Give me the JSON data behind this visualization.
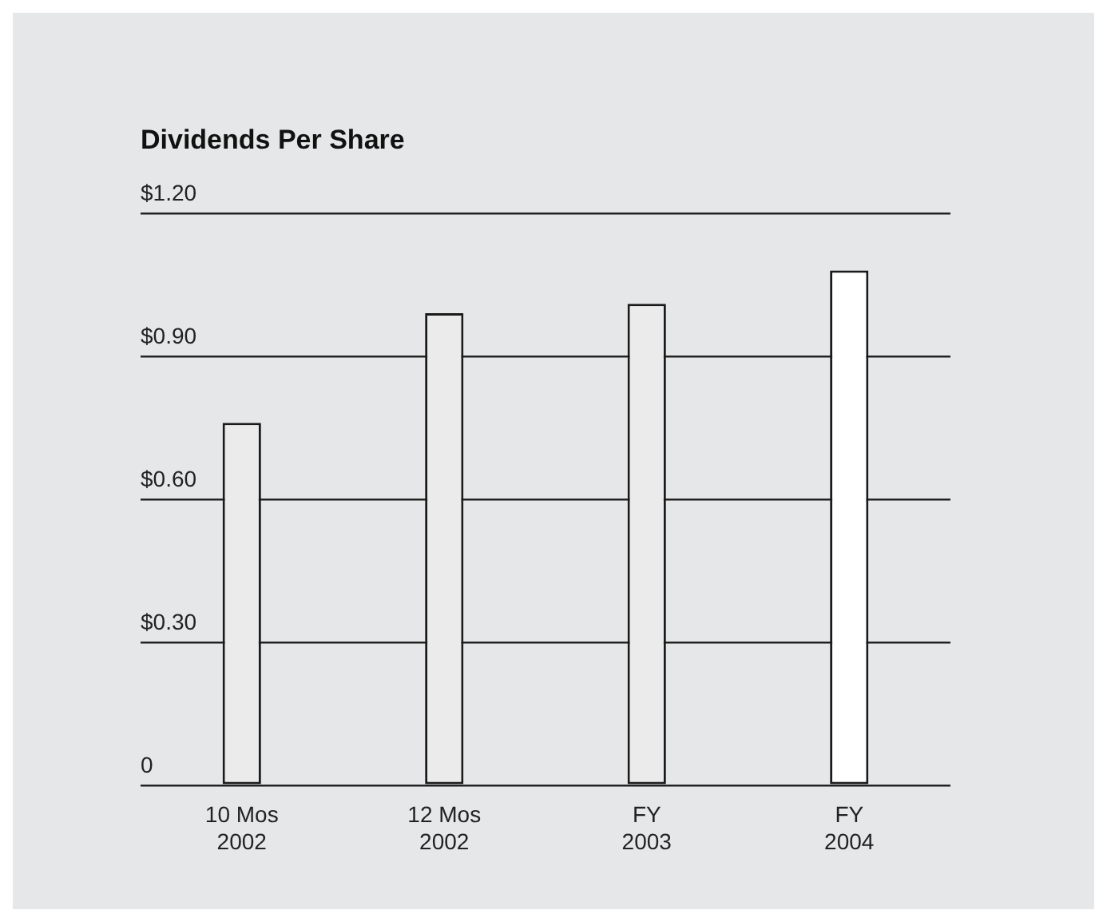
{
  "chart_data": {
    "type": "bar",
    "title": "Dividends Per Share",
    "categories": [
      "10 Mos\n2002",
      "12 Mos\n2002",
      "FY\n2003",
      "FY\n2004"
    ],
    "values": [
      0.76,
      0.99,
      1.01,
      1.08
    ],
    "colors": [
      "#ebebeb",
      "#ebebeb",
      "#ebebeb",
      "#ffffff"
    ],
    "ylim": [
      0,
      1.2
    ],
    "yticks": [
      {
        "value": 0,
        "label": "0"
      },
      {
        "value": 0.3,
        "label": "$0.30"
      },
      {
        "value": 0.6,
        "label": "$0.60"
      },
      {
        "value": 0.9,
        "label": "$0.90"
      },
      {
        "value": 1.2,
        "label": "$1.20"
      }
    ],
    "grid": "y"
  }
}
